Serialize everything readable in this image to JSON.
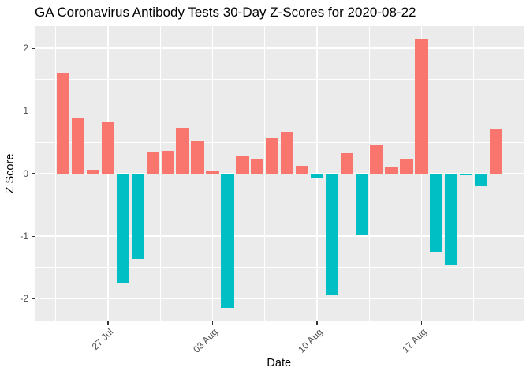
{
  "chart_data": {
    "type": "bar",
    "title": "GA Coronavirus Antibody Tests 30-Day Z-Scores for 2020-08-22",
    "xlabel": "Date",
    "ylabel": "Z Score",
    "ylim": [
      -2.36,
      2.36
    ],
    "grid": "major-and-minor",
    "legend": "none",
    "y_ticks": [
      {
        "label": "2",
        "value": 2
      },
      {
        "label": "1",
        "value": 1
      },
      {
        "label": "0",
        "value": 0
      },
      {
        "label": "-1",
        "value": -1
      },
      {
        "label": "-2",
        "value": -2
      }
    ],
    "x_ticks": [
      {
        "label": "27 Jul",
        "day_index": 3
      },
      {
        "label": "03 Aug",
        "day_index": 10
      },
      {
        "label": "10 Aug",
        "day_index": 17
      },
      {
        "label": "17 Aug",
        "day_index": 24
      }
    ],
    "dates": [
      "2020-07-24",
      "2020-07-25",
      "2020-07-26",
      "2020-07-27",
      "2020-07-28",
      "2020-07-29",
      "2020-07-30",
      "2020-07-31",
      "2020-08-01",
      "2020-08-02",
      "2020-08-03",
      "2020-08-04",
      "2020-08-05",
      "2020-08-06",
      "2020-08-07",
      "2020-08-08",
      "2020-08-09",
      "2020-08-10",
      "2020-08-11",
      "2020-08-12",
      "2020-08-13",
      "2020-08-14",
      "2020-08-15",
      "2020-08-16",
      "2020-08-17",
      "2020-08-18",
      "2020-08-19",
      "2020-08-20",
      "2020-08-21",
      "2020-08-22"
    ],
    "values": [
      1.6,
      0.89,
      0.06,
      0.83,
      -1.74,
      -1.37,
      0.34,
      0.36,
      0.73,
      0.53,
      0.05,
      -2.14,
      0.27,
      0.24,
      0.56,
      0.66,
      0.12,
      -0.06,
      -1.95,
      0.32,
      -0.97,
      0.45,
      0.11,
      0.24,
      2.15,
      -1.25,
      -1.45,
      -0.03,
      -0.21,
      0.71
    ],
    "colors": {
      "positive_bar": "#F8766D",
      "negative_bar": "#00BFC4",
      "panel_background": "#EBEBEB",
      "gridline": "#FFFFFF",
      "tick_mark": "#333333",
      "tick_label": "#4D4D4D",
      "title_text": "#000000"
    }
  }
}
